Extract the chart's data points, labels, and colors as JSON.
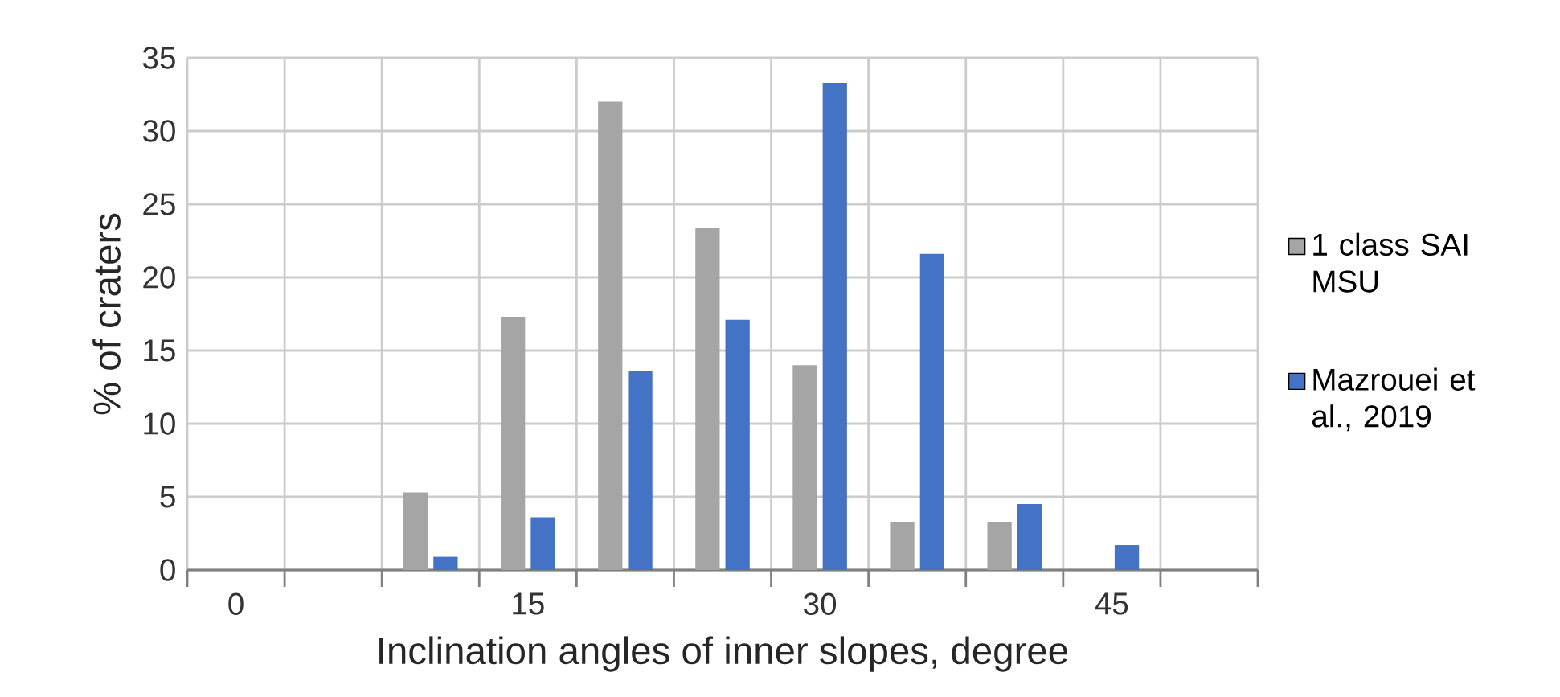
{
  "chart_data": {
    "type": "bar",
    "xlabel": "Inclination angles of inner slopes,  degree",
    "ylabel": "% of craters",
    "categories": [
      "0",
      null,
      null,
      "15",
      null,
      null,
      "30",
      null,
      null,
      "45",
      null
    ],
    "series": [
      {
        "name": "1 class SAI MSU",
        "color": "#a5a5a5",
        "values": [
          0,
          0,
          5.3,
          17.3,
          32,
          23.4,
          14,
          3.3,
          3.3,
          0,
          0
        ]
      },
      {
        "name": "Mazrouei et al., 2019",
        "color": "#4472c4",
        "values": [
          0,
          0,
          0.9,
          3.6,
          13.6,
          17.1,
          33.3,
          21.6,
          4.5,
          1.7,
          0
        ]
      }
    ],
    "ylim": [
      0,
      35
    ],
    "yticks": [
      0,
      5,
      10,
      15,
      20,
      25,
      30,
      35
    ],
    "grid": true,
    "legend": "right"
  }
}
